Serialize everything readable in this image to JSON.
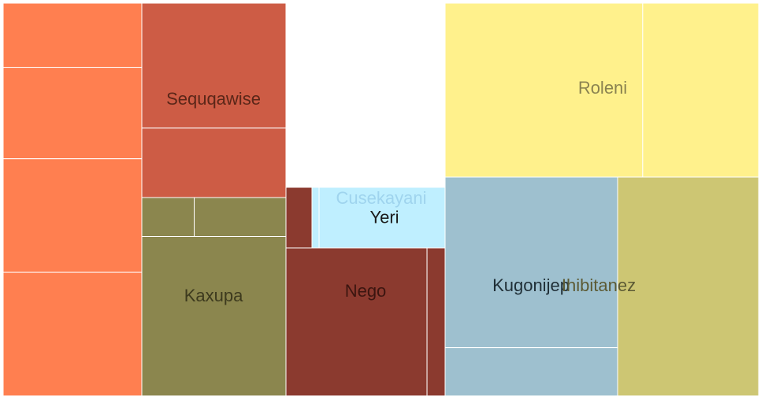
{
  "chart_data": {
    "type": "treemap",
    "title": "",
    "groups": [
      {
        "name": "",
        "color": "#ff7f50",
        "label_color": "",
        "children": [
          {
            "name": "",
            "value": 26
          },
          {
            "name": "",
            "value": 37
          },
          {
            "name": "",
            "value": 46
          },
          {
            "name": "",
            "value": 50
          }
        ]
      },
      {
        "name": "Sequqawise",
        "color": "#cd5c45",
        "label_color": "#5a2618",
        "children": [
          {
            "name": "",
            "value": 36
          },
          {
            "name": "",
            "value": 20
          }
        ]
      },
      {
        "name": "Kaxupa",
        "color": "#8b864e",
        "label_color": "#3d3a1e",
        "children": [
          {
            "name": "",
            "value": 4
          },
          {
            "name": "",
            "value": 7
          },
          {
            "name": "",
            "value": 45
          }
        ]
      },
      {
        "name": "Nego",
        "color": "#8b3a2f",
        "label_color": "#3b1510",
        "children": [
          {
            "name": "",
            "value": 3
          },
          {
            "name": "",
            "value": 36
          },
          {
            "name": "",
            "value": 5
          }
        ]
      },
      {
        "name": "Cusekayani",
        "color": "#bfefff",
        "label_color": "#9fd4ee",
        "children": [
          {
            "name": "",
            "value": 2
          },
          {
            "name": "Yeri",
            "value": 16
          }
        ]
      },
      {
        "name": "Roleni",
        "color": "#fff18c",
        "label_color": "#8a8250",
        "children": [
          {
            "name": "",
            "value": 75
          },
          {
            "name": "",
            "value": 44
          }
        ]
      },
      {
        "name": "Kugonijep",
        "color": "#9ec0cf",
        "label_color": "#1f2e36",
        "children": [
          {
            "name": "",
            "value": 60
          },
          {
            "name": "",
            "value": 17
          }
        ]
      },
      {
        "name": "Ihibitanez",
        "color": "#cdc673",
        "label_color": "#5c5a34",
        "children": [
          {
            "name": "",
            "value": 46
          }
        ]
      }
    ]
  }
}
